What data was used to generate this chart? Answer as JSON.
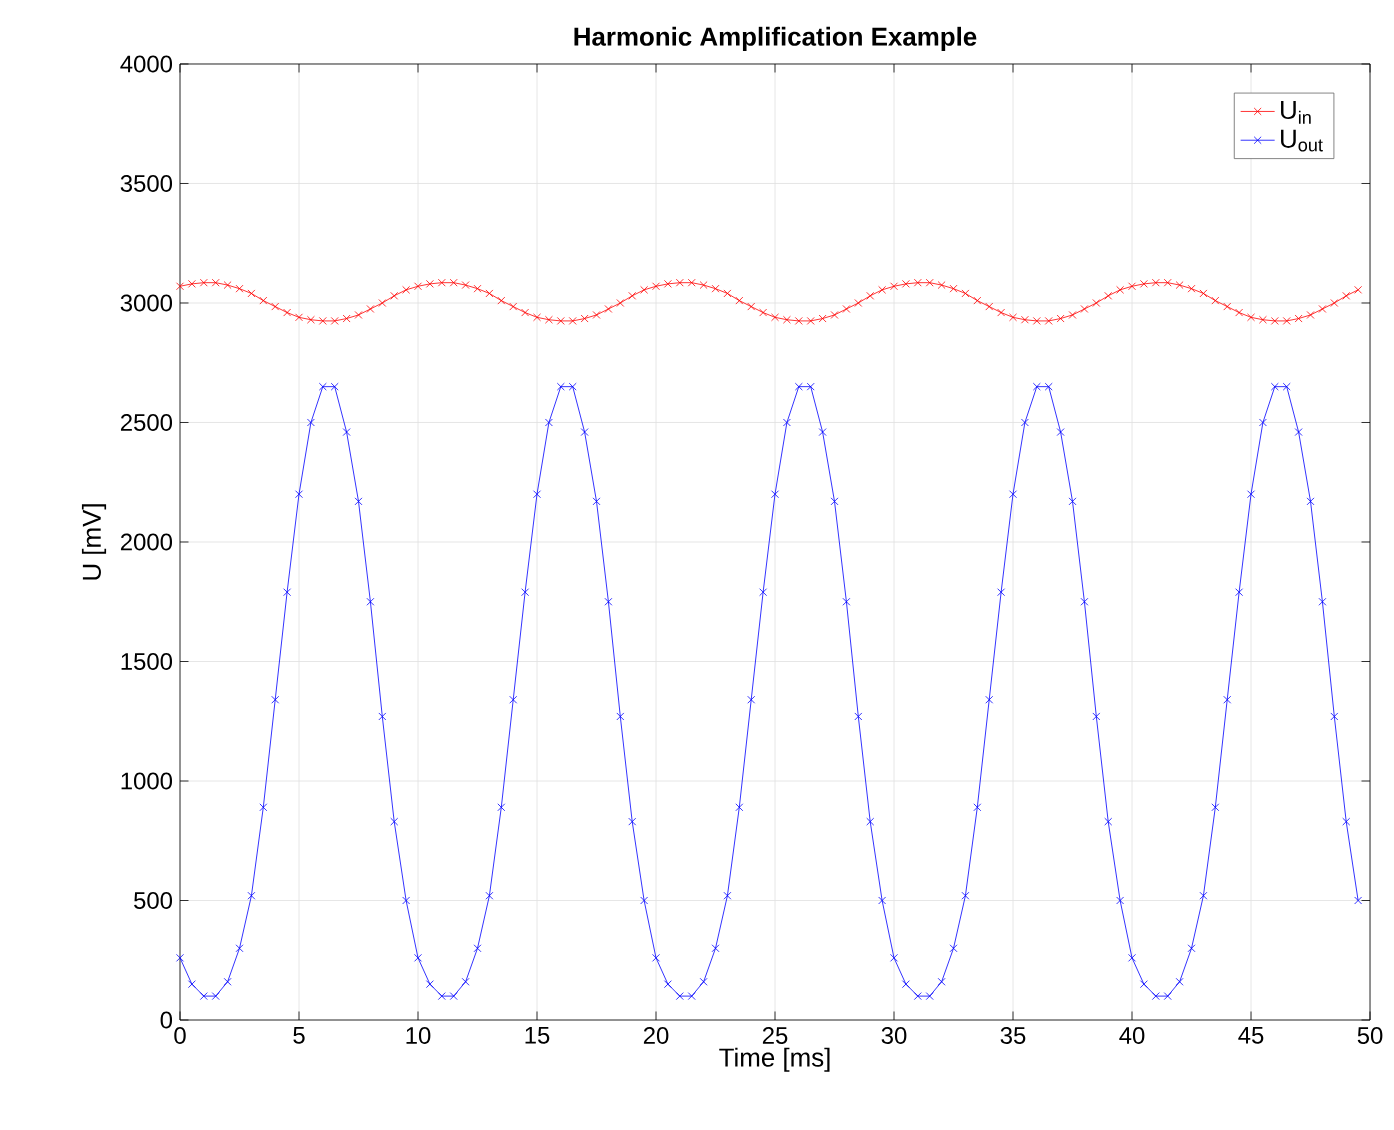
{
  "chart_data": {
    "type": "line",
    "title": "**Harmonic Amplification Example**",
    "xlabel": "Time [ms]",
    "ylabel": "U [mV]",
    "x": [
      0,
      0.5,
      1,
      1.5,
      2,
      2.5,
      3,
      3.5,
      4,
      4.5,
      5,
      5.5,
      6,
      6.5,
      7,
      7.5,
      8,
      8.5,
      9,
      9.5,
      10,
      10.5,
      11,
      11.5,
      12,
      12.5,
      13,
      13.5,
      14,
      14.5,
      15,
      15.5,
      16,
      16.5,
      17,
      17.5,
      18,
      18.5,
      19,
      19.5,
      20,
      20.5,
      21,
      21.5,
      22,
      22.5,
      23,
      23.5,
      24,
      24.5,
      25,
      25.5,
      26,
      26.5,
      27,
      27.5,
      28,
      28.5,
      29,
      29.5,
      30,
      30.5,
      31,
      31.5,
      32,
      32.5,
      33,
      33.5,
      34,
      34.5,
      35,
      35.5,
      36,
      36.5,
      37,
      37.5,
      38,
      38.5,
      39,
      39.5,
      40,
      40.5,
      41,
      41.5,
      42,
      42.5,
      43,
      43.5,
      44,
      44.5,
      45,
      45.5,
      46,
      46.5,
      47,
      47.5,
      48,
      48.5,
      49,
      49.5
    ],
    "series": [
      {
        "name": "U$_{in}$",
        "color": "#ff0000",
        "values": [
          3070,
          3080,
          3085,
          3085,
          3075,
          3060,
          3040,
          3010,
          2985,
          2960,
          2940,
          2930,
          2925,
          2925,
          2935,
          2950,
          2975,
          3000,
          3030,
          3055,
          3070,
          3080,
          3085,
          3085,
          3075,
          3060,
          3040,
          3010,
          2985,
          2960,
          2940,
          2930,
          2925,
          2925,
          2935,
          2950,
          2975,
          3000,
          3030,
          3055,
          3070,
          3080,
          3085,
          3085,
          3075,
          3060,
          3040,
          3010,
          2985,
          2960,
          2940,
          2930,
          2925,
          2925,
          2935,
          2950,
          2975,
          3000,
          3030,
          3055,
          3070,
          3080,
          3085,
          3085,
          3075,
          3060,
          3040,
          3010,
          2985,
          2960,
          2940,
          2930,
          2925,
          2925,
          2935,
          2950,
          2975,
          3000,
          3030,
          3055,
          3070,
          3080,
          3085,
          3085,
          3075,
          3060,
          3040,
          3010,
          2985,
          2960,
          2940,
          2930,
          2925,
          2925,
          2935,
          2950,
          2975,
          3000,
          3030,
          3055
        ]
      },
      {
        "name": "U$_{out}$",
        "color": "#0000ff",
        "values": [
          260,
          150,
          100,
          100,
          160,
          300,
          520,
          890,
          1340,
          1790,
          2200,
          2500,
          2650,
          2650,
          2460,
          2170,
          1750,
          1270,
          830,
          500,
          260,
          150,
          100,
          100,
          160,
          300,
          520,
          890,
          1340,
          1790,
          2200,
          2500,
          2650,
          2650,
          2460,
          2170,
          1750,
          1270,
          830,
          500,
          260,
          150,
          100,
          100,
          160,
          300,
          520,
          890,
          1340,
          1790,
          2200,
          2500,
          2650,
          2650,
          2460,
          2170,
          1750,
          1270,
          830,
          500,
          260,
          150,
          100,
          100,
          160,
          300,
          520,
          890,
          1340,
          1790,
          2200,
          2500,
          2650,
          2650,
          2460,
          2170,
          1750,
          1270,
          830,
          500,
          260,
          150,
          100,
          100,
          160,
          300,
          520,
          890,
          1340,
          1790,
          2200,
          2500,
          2650,
          2650,
          2460,
          2170,
          1750,
          1270,
          830,
          500
        ]
      }
    ],
    "xlim": [
      0,
      50
    ],
    "ylim": [
      0,
      4000
    ],
    "xticks": [
      0,
      5,
      10,
      15,
      20,
      25,
      30,
      35,
      40,
      45,
      50
    ],
    "yticks": [
      0,
      500,
      1000,
      1500,
      2000,
      2500,
      3000,
      3500,
      4000
    ],
    "grid": true,
    "legend": "top right",
    "marker": "cross",
    "line_style": "solid"
  }
}
